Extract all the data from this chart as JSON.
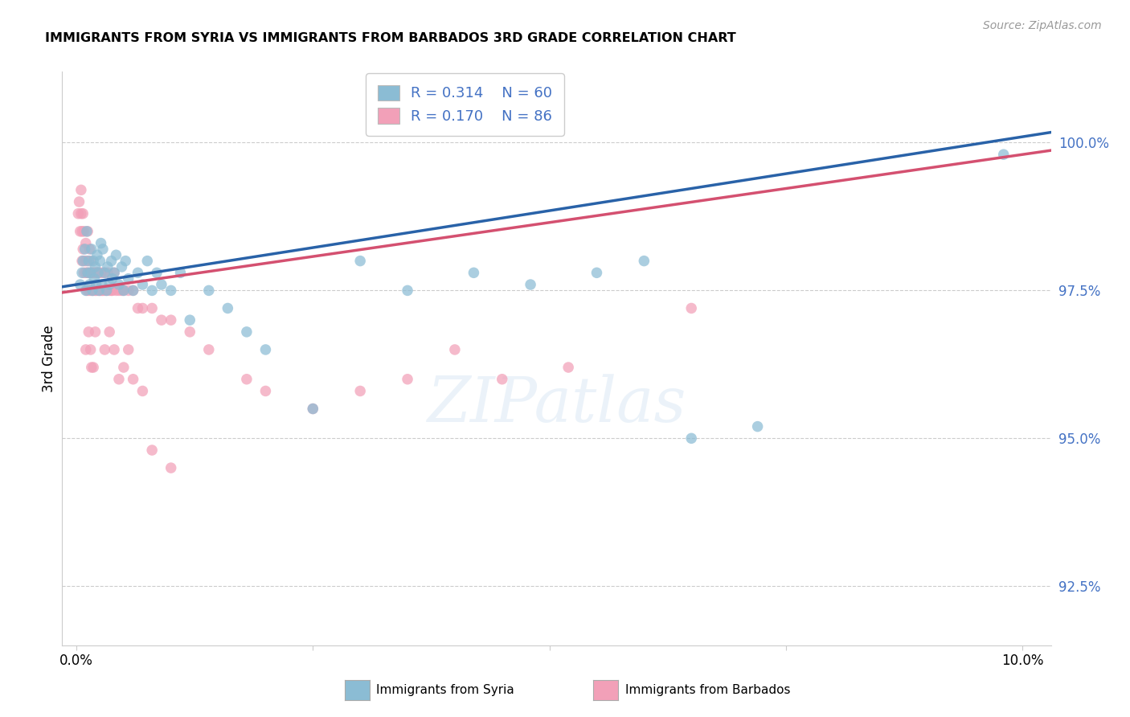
{
  "title": "IMMIGRANTS FROM SYRIA VS IMMIGRANTS FROM BARBADOS 3RD GRADE CORRELATION CHART",
  "source": "Source: ZipAtlas.com",
  "ylabel": "3rd Grade",
  "ylabel_right_ticks": [
    92.5,
    95.0,
    97.5,
    100.0
  ],
  "ylabel_right_labels": [
    "92.5%",
    "95.0%",
    "97.5%",
    "100.0%"
  ],
  "legend_r_syria": "R = 0.314",
  "legend_n_syria": "N = 60",
  "legend_r_barbados": "R = 0.170",
  "legend_n_barbados": "N = 86",
  "syria_color": "#8bbcd4",
  "barbados_color": "#f2a0b8",
  "syria_line_color": "#2962a8",
  "barbados_line_color": "#d45070",
  "xlim_min": -0.15,
  "xlim_max": 10.3,
  "ylim_min": 91.5,
  "ylim_max": 101.2,
  "syria_x": [
    0.04,
    0.06,
    0.07,
    0.09,
    0.1,
    0.11,
    0.12,
    0.13,
    0.14,
    0.15,
    0.16,
    0.17,
    0.18,
    0.19,
    0.2,
    0.21,
    0.22,
    0.23,
    0.24,
    0.25,
    0.26,
    0.27,
    0.28,
    0.3,
    0.32,
    0.33,
    0.35,
    0.37,
    0.38,
    0.4,
    0.42,
    0.45,
    0.48,
    0.5,
    0.52,
    0.55,
    0.6,
    0.65,
    0.7,
    0.75,
    0.8,
    0.85,
    0.9,
    1.0,
    1.1,
    1.2,
    1.4,
    1.6,
    1.8,
    2.0,
    2.5,
    3.0,
    3.5,
    4.2,
    4.8,
    5.5,
    6.0,
    6.5,
    7.2,
    9.8
  ],
  "syria_y": [
    97.6,
    97.8,
    98.0,
    98.2,
    97.5,
    98.5,
    97.8,
    98.0,
    97.6,
    97.8,
    98.2,
    97.5,
    98.0,
    97.7,
    97.9,
    97.6,
    98.1,
    97.8,
    97.5,
    98.0,
    98.3,
    97.6,
    98.2,
    97.8,
    97.5,
    97.9,
    97.6,
    98.0,
    97.7,
    97.8,
    98.1,
    97.6,
    97.9,
    97.5,
    98.0,
    97.7,
    97.5,
    97.8,
    97.6,
    98.0,
    97.5,
    97.8,
    97.6,
    97.5,
    97.8,
    97.0,
    97.5,
    97.2,
    96.8,
    96.5,
    95.5,
    98.0,
    97.5,
    97.8,
    97.6,
    97.8,
    98.0,
    95.0,
    95.2,
    99.8
  ],
  "barbados_x": [
    0.02,
    0.03,
    0.04,
    0.05,
    0.05,
    0.06,
    0.06,
    0.07,
    0.07,
    0.08,
    0.08,
    0.09,
    0.1,
    0.1,
    0.11,
    0.11,
    0.12,
    0.12,
    0.13,
    0.14,
    0.14,
    0.15,
    0.15,
    0.16,
    0.17,
    0.17,
    0.18,
    0.19,
    0.2,
    0.2,
    0.21,
    0.22,
    0.23,
    0.24,
    0.25,
    0.26,
    0.27,
    0.28,
    0.29,
    0.3,
    0.32,
    0.33,
    0.35,
    0.37,
    0.38,
    0.4,
    0.42,
    0.45,
    0.48,
    0.5,
    0.55,
    0.6,
    0.65,
    0.7,
    0.8,
    0.9,
    1.0,
    1.2,
    1.4,
    1.8,
    2.0,
    2.5,
    3.0,
    3.5,
    4.0,
    4.5,
    5.2,
    6.5,
    0.15,
    0.18,
    0.22,
    0.1,
    0.13,
    0.16,
    0.2,
    0.25,
    0.3,
    0.35,
    0.4,
    0.45,
    0.5,
    0.55,
    0.6,
    0.7,
    0.8,
    1.0
  ],
  "barbados_y": [
    98.8,
    99.0,
    98.5,
    98.8,
    99.2,
    98.0,
    98.5,
    98.2,
    98.8,
    97.8,
    98.5,
    98.0,
    97.8,
    98.3,
    97.5,
    98.0,
    97.8,
    98.5,
    97.5,
    97.8,
    98.2,
    97.5,
    98.0,
    97.8,
    97.5,
    97.8,
    97.5,
    97.8,
    97.5,
    97.8,
    97.5,
    97.8,
    97.5,
    97.8,
    97.5,
    97.8,
    97.5,
    97.5,
    97.8,
    97.5,
    97.5,
    97.8,
    97.5,
    97.5,
    97.5,
    97.8,
    97.5,
    97.5,
    97.5,
    97.5,
    97.5,
    97.5,
    97.2,
    97.2,
    97.2,
    97.0,
    97.0,
    96.8,
    96.5,
    96.0,
    95.8,
    95.5,
    95.8,
    96.0,
    96.5,
    96.0,
    96.2,
    97.2,
    96.5,
    96.2,
    97.8,
    96.5,
    96.8,
    96.2,
    96.8,
    97.5,
    96.5,
    96.8,
    96.5,
    96.0,
    96.2,
    96.5,
    96.0,
    95.8,
    94.8,
    94.5
  ]
}
